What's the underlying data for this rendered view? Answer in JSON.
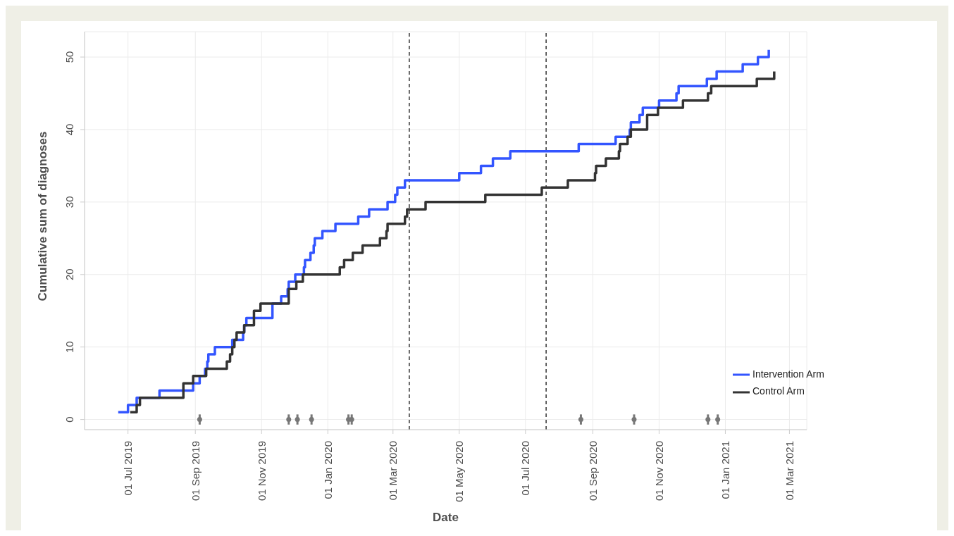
{
  "chart_data": {
    "type": "step",
    "xlabel": "Date",
    "ylabel": "Cumulative sum of diagnoses",
    "xlim": [
      "2019-05-22",
      "2021-03-17"
    ],
    "ylim": [
      -1.4,
      53.5
    ],
    "xticks": [
      {
        "value": "2019-07-01",
        "label": "01 Jul 2019"
      },
      {
        "value": "2019-09-01",
        "label": "01 Sep 2019"
      },
      {
        "value": "2019-11-01",
        "label": "01 Nov 2019"
      },
      {
        "value": "2020-01-01",
        "label": "01 Jan 2020"
      },
      {
        "value": "2020-03-01",
        "label": "01 Mar 2020"
      },
      {
        "value": "2020-05-01",
        "label": "01 May 2020"
      },
      {
        "value": "2020-07-01",
        "label": "01 Jul 2020"
      },
      {
        "value": "2020-09-01",
        "label": "01 Sep 2020"
      },
      {
        "value": "2020-11-01",
        "label": "01 Nov 2020"
      },
      {
        "value": "2021-01-01",
        "label": "01 Jan 2021"
      },
      {
        "value": "2021-03-01",
        "label": "01 Mar 2021"
      }
    ],
    "yticks": [
      0,
      10,
      20,
      30,
      40,
      50
    ],
    "grid": true,
    "legend": "bottom right",
    "marker": "none",
    "line_style": "solid",
    "ref_lines": [
      {
        "axis": "x",
        "value": "2020-03-16",
        "color": "#333333",
        "line_style": "dashed"
      },
      {
        "axis": "x",
        "value": "2020-07-20",
        "color": "#333333",
        "line_style": "dashed"
      }
    ],
    "series": [
      {
        "name": "Intervention Arm",
        "color": "#3355ff",
        "x": [
          "2019-06-22",
          "2019-07-01",
          "2019-07-09",
          "2019-07-30",
          "2019-08-30",
          "2019-09-05",
          "2019-09-10",
          "2019-09-12",
          "2019-09-13",
          "2019-09-19",
          "2019-10-05",
          "2019-10-15",
          "2019-10-16",
          "2019-10-18",
          "2019-11-11",
          "2019-11-19",
          "2019-11-25",
          "2019-11-26",
          "2019-12-02",
          "2019-12-10",
          "2019-12-11",
          "2019-12-16",
          "2019-12-19",
          "2019-12-20",
          "2019-12-27",
          "2020-01-08",
          "2020-01-29",
          "2020-02-08",
          "2020-02-25",
          "2020-03-03",
          "2020-03-05",
          "2020-03-12",
          "2020-05-01",
          "2020-05-21",
          "2020-06-01",
          "2020-06-17",
          "2020-08-19",
          "2020-09-22",
          "2020-10-05",
          "2020-10-06",
          "2020-10-14",
          "2020-10-17",
          "2020-11-01",
          "2020-11-17",
          "2020-11-19",
          "2020-12-15",
          "2020-12-24",
          "2021-01-17",
          "2021-01-31",
          "2021-02-10"
        ],
        "values": [
          1,
          2,
          3,
          4,
          5,
          6,
          7,
          8,
          9,
          10,
          11,
          12,
          13,
          14,
          16,
          17,
          18,
          19,
          20,
          21,
          22,
          23,
          24,
          25,
          26,
          27,
          28,
          29,
          30,
          31,
          32,
          33,
          34,
          35,
          36,
          37,
          38,
          39,
          40,
          41,
          42,
          43,
          44,
          45,
          46,
          47,
          48,
          49,
          50,
          51
        ]
      },
      {
        "name": "Control Arm",
        "color": "#333333",
        "x": [
          "2019-07-03",
          "2019-07-09",
          "2019-07-12",
          "2019-08-21",
          "2019-08-30",
          "2019-09-11",
          "2019-09-30",
          "2019-10-03",
          "2019-10-05",
          "2019-10-07",
          "2019-10-09",
          "2019-10-16",
          "2019-10-25",
          "2019-10-31",
          "2019-11-26",
          "2019-12-03",
          "2019-12-09",
          "2020-01-12",
          "2020-01-16",
          "2020-01-24",
          "2020-02-02",
          "2020-02-18",
          "2020-02-24",
          "2020-02-25",
          "2020-03-12",
          "2020-03-14",
          "2020-03-31",
          "2020-05-25",
          "2020-07-16",
          "2020-08-09",
          "2020-09-03",
          "2020-09-04",
          "2020-09-13",
          "2020-09-25",
          "2020-09-26",
          "2020-10-03",
          "2020-10-06",
          "2020-10-21",
          "2020-10-31",
          "2020-11-23",
          "2020-12-16",
          "2020-12-19",
          "2021-01-30",
          "2021-02-15"
        ],
        "values": [
          1,
          2,
          3,
          5,
          6,
          7,
          8,
          9,
          10,
          11,
          12,
          13,
          15,
          16,
          18,
          19,
          20,
          21,
          22,
          23,
          24,
          25,
          26,
          27,
          28,
          29,
          30,
          31,
          32,
          33,
          34,
          35,
          36,
          37,
          38,
          39,
          40,
          42,
          43,
          44,
          45,
          46,
          47,
          48
        ]
      },
      {
        "type": "scatter",
        "color": "#777777",
        "marker": "circle",
        "errors": [
          0.7,
          0.7,
          0.7,
          0.7,
          0.7,
          0.7,
          0.7,
          0.7,
          0.7,
          0.7
        ],
        "x": [
          "2019-09-05",
          "2019-11-26",
          "2019-12-04",
          "2019-12-17",
          "2020-01-20",
          "2020-01-23",
          "2020-08-21",
          "2020-10-09",
          "2020-12-16",
          "2020-12-25"
        ],
        "values": [
          0,
          0,
          0,
          0,
          0,
          0,
          0,
          0,
          0,
          0
        ]
      }
    ]
  }
}
